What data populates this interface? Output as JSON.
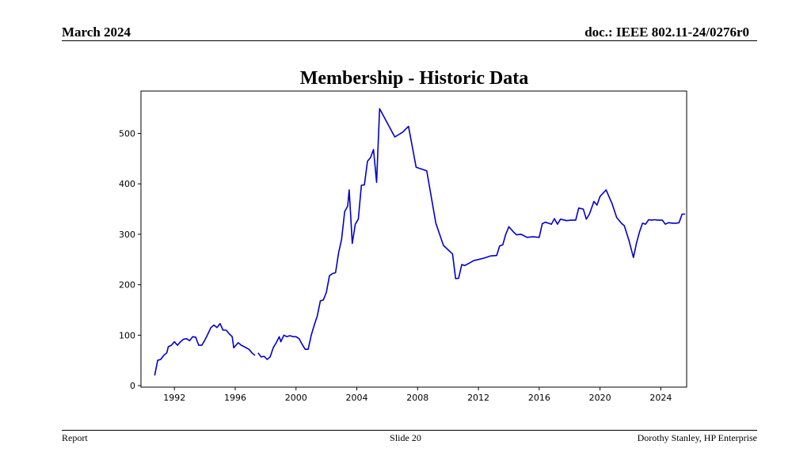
{
  "header": {
    "date": "March 2024",
    "doc_id": "doc.: IEEE 802.11-24/0276r0"
  },
  "footer": {
    "left": "Report",
    "center": "Slide 20",
    "right": "Dorothy Stanley, HP Enterprise"
  },
  "chart_data": {
    "type": "line",
    "title": "Membership - Historic Data",
    "xlabel": "",
    "ylabel": "",
    "xlim": [
      1989.8,
      2025.7
    ],
    "ylim": [
      -3,
      584
    ],
    "xticks": [
      1992,
      1996,
      2000,
      2004,
      2008,
      2012,
      2016,
      2020,
      2024
    ],
    "yticks": [
      0,
      100,
      200,
      300,
      400,
      500
    ],
    "grid": false,
    "color": "#0000cc",
    "segments": [
      [
        [
          1990.7,
          20
        ],
        [
          1990.9,
          50
        ],
        [
          1991.1,
          52
        ],
        [
          1991.3,
          60
        ],
        [
          1991.5,
          65
        ],
        [
          1991.6,
          77
        ],
        [
          1991.8,
          80
        ],
        [
          1992.0,
          87
        ],
        [
          1992.2,
          80
        ],
        [
          1992.4,
          87
        ],
        [
          1992.6,
          92
        ],
        [
          1992.8,
          93
        ],
        [
          1993.0,
          89
        ],
        [
          1993.2,
          97
        ],
        [
          1993.4,
          96
        ],
        [
          1993.6,
          80
        ],
        [
          1993.8,
          80
        ],
        [
          1994.0,
          90
        ],
        [
          1994.2,
          102
        ],
        [
          1994.4,
          115
        ],
        [
          1994.6,
          120
        ],
        [
          1994.8,
          115
        ],
        [
          1995.0,
          123
        ],
        [
          1995.2,
          110
        ],
        [
          1995.4,
          110
        ],
        [
          1995.6,
          103
        ],
        [
          1995.8,
          97
        ],
        [
          1995.9,
          75
        ],
        [
          1996.2,
          85
        ],
        [
          1996.4,
          80
        ],
        [
          1996.6,
          77
        ],
        [
          1996.9,
          72
        ],
        [
          1997.1,
          65
        ],
        [
          1997.3,
          60
        ]
      ],
      [
        [
          1997.5,
          65
        ],
        [
          1997.7,
          57
        ],
        [
          1997.9,
          58
        ],
        [
          1998.1,
          52
        ],
        [
          1998.3,
          57
        ],
        [
          1998.5,
          75
        ],
        [
          1998.7,
          85
        ],
        [
          1998.9,
          97
        ],
        [
          1999.0,
          87
        ],
        [
          1999.2,
          100
        ],
        [
          1999.4,
          97
        ],
        [
          1999.6,
          99
        ],
        [
          1999.8,
          97
        ],
        [
          2000.0,
          97
        ],
        [
          2000.2,
          93
        ],
        [
          2000.4,
          82
        ],
        [
          2000.6,
          72
        ],
        [
          2000.8,
          72
        ],
        [
          2001.0,
          100
        ],
        [
          2001.2,
          120
        ],
        [
          2001.4,
          138
        ],
        [
          2001.6,
          168
        ],
        [
          2001.8,
          170
        ],
        [
          2002.0,
          185
        ],
        [
          2002.2,
          218
        ],
        [
          2002.4,
          222
        ],
        [
          2002.6,
          224
        ],
        [
          2002.8,
          263
        ],
        [
          2003.0,
          290
        ],
        [
          2003.2,
          345
        ],
        [
          2003.4,
          356
        ],
        [
          2003.5,
          388
        ],
        [
          2003.7,
          282
        ],
        [
          2003.9,
          320
        ],
        [
          2004.1,
          330
        ],
        [
          2004.3,
          397
        ],
        [
          2004.5,
          398
        ],
        [
          2004.7,
          445
        ],
        [
          2004.9,
          452
        ],
        [
          2005.1,
          468
        ],
        [
          2005.3,
          403
        ],
        [
          2005.5,
          549
        ],
        [
          2006.5,
          493
        ],
        [
          2007.0,
          502
        ],
        [
          2007.4,
          514
        ],
        [
          2007.9,
          433
        ],
        [
          2008.6,
          426
        ],
        [
          2009.2,
          322
        ],
        [
          2009.7,
          278
        ],
        [
          2010.3,
          261
        ],
        [
          2010.5,
          212
        ],
        [
          2010.7,
          213
        ],
        [
          2010.9,
          240
        ],
        [
          2011.1,
          238
        ],
        [
          2011.4,
          243
        ],
        [
          2011.7,
          248
        ],
        [
          2012.0,
          250
        ],
        [
          2012.4,
          253
        ],
        [
          2012.8,
          257
        ],
        [
          2013.2,
          258
        ],
        [
          2013.4,
          277
        ],
        [
          2013.6,
          279
        ],
        [
          2013.8,
          300
        ],
        [
          2014.0,
          315
        ],
        [
          2014.3,
          305
        ],
        [
          2014.5,
          299
        ],
        [
          2014.8,
          300
        ],
        [
          2015.2,
          294
        ],
        [
          2015.6,
          295
        ],
        [
          2016.0,
          294
        ],
        [
          2016.2,
          321
        ],
        [
          2016.4,
          324
        ],
        [
          2016.6,
          322
        ],
        [
          2016.8,
          320
        ],
        [
          2017.0,
          331
        ],
        [
          2017.2,
          320
        ],
        [
          2017.4,
          330
        ],
        [
          2017.8,
          327
        ],
        [
          2018.1,
          328
        ],
        [
          2018.4,
          328
        ],
        [
          2018.6,
          352
        ],
        [
          2018.9,
          350
        ],
        [
          2019.1,
          330
        ],
        [
          2019.3,
          340
        ],
        [
          2019.6,
          365
        ],
        [
          2019.8,
          358
        ],
        [
          2020.0,
          375
        ],
        [
          2020.4,
          388
        ],
        [
          2020.8,
          360
        ],
        [
          2021.1,
          333
        ],
        [
          2021.4,
          322
        ],
        [
          2021.6,
          317
        ],
        [
          2021.9,
          288
        ],
        [
          2022.2,
          254
        ],
        [
          2022.4,
          283
        ],
        [
          2022.6,
          305
        ],
        [
          2022.8,
          322
        ],
        [
          2023.0,
          320
        ],
        [
          2023.2,
          329
        ],
        [
          2023.4,
          328
        ],
        [
          2023.6,
          329
        ],
        [
          2023.8,
          328
        ],
        [
          2024.1,
          328
        ],
        [
          2024.3,
          320
        ],
        [
          2024.5,
          323
        ],
        [
          2024.8,
          322
        ],
        [
          2025.0,
          322
        ],
        [
          2025.2,
          323
        ],
        [
          2025.4,
          340
        ],
        [
          2025.6,
          340
        ]
      ]
    ]
  }
}
